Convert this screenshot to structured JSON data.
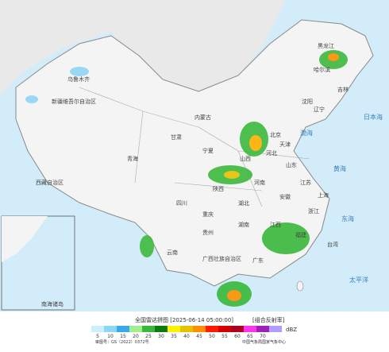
{
  "map": {
    "places": [
      "乌鲁木齐",
      "新疆维吾尔自治区",
      "西藏自治区",
      "青海",
      "甘肃",
      "内蒙古",
      "宁夏",
      "陕西",
      "山西",
      "河北",
      "北京",
      "天津",
      "山东",
      "河南",
      "四川",
      "重庆",
      "湖北",
      "湖南",
      "贵州",
      "云南",
      "广西壮族自治区",
      "广东",
      "江西",
      "福建",
      "浙江",
      "安徽",
      "江苏",
      "上海",
      "台湾",
      "黑龙江",
      "吉林",
      "辽宁",
      "哈尔滨",
      "沈阳",
      "太平洋",
      "东海",
      "黄海",
      "渤海",
      "日本海",
      "南海诸岛"
    ]
  },
  "legend": {
    "title": "全国雷达拼图 [2025-06-14 05:00:00]",
    "product": "[组合反射率]",
    "unit": "dBZ",
    "labels": [
      5,
      10,
      15,
      20,
      25,
      30,
      35,
      40,
      45,
      50,
      55,
      60,
      65,
      70
    ],
    "colors": [
      "#cdeffd",
      "#8fd6f5",
      "#3aa9ec",
      "#a4ef8d",
      "#39b83a",
      "#0f7a10",
      "#fff200",
      "#e7c000",
      "#ff8f00",
      "#ff1a00",
      "#d40000",
      "#b00020",
      "#ff33ee",
      "#9d22b8",
      "#b49cff"
    ]
  },
  "footer": {
    "review": "审图号：GS（2022）0372号",
    "agency": "中国气象局国家气象中心"
  }
}
